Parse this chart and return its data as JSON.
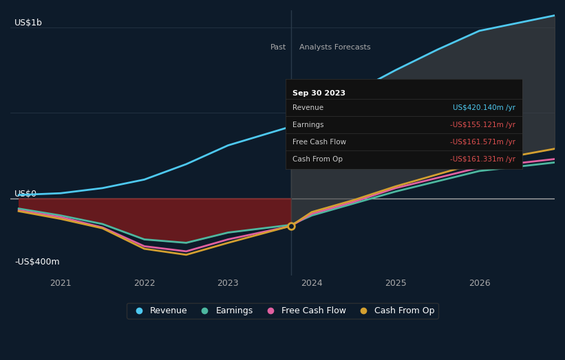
{
  "bg_color": "#0d1b2a",
  "plot_bg_color": "#0d1b2a",
  "title": "Sep 30 2023",
  "tooltip": {
    "date": "Sep 30 2023",
    "rows": [
      {
        "label": "Revenue",
        "value": "US$420.140m /yr",
        "color": "#4ec9f0"
      },
      {
        "label": "Earnings",
        "value": "-US$155.121m /yr",
        "color": "#e05050"
      },
      {
        "label": "Free Cash Flow",
        "value": "-US$161.571m /yr",
        "color": "#e05050"
      },
      {
        "label": "Cash From Op",
        "value": "-US$161.331m /yr",
        "color": "#e05050"
      }
    ]
  },
  "ylabel_top": "US$1b",
  "ylabel_mid": "US$0",
  "ylabel_bot": "-US$400m",
  "xlabel_past": "Past",
  "xlabel_forecast": "Analysts Forecasts",
  "divider_x": 2023.75,
  "ylim": [
    -450,
    1100
  ],
  "xlim": [
    2020.4,
    2026.9
  ],
  "xticks": [
    2021,
    2022,
    2023,
    2024,
    2025,
    2026
  ],
  "grid_color": "#2a3a4a",
  "zero_line_color": "#aaaaaa",
  "revenue_color": "#4ec9f0",
  "earnings_color": "#4db8a0",
  "cashflow_color": "#e060a0",
  "cashfromop_color": "#d4a030",
  "forecast_fill_color": "#555555",
  "past_fill_color": "#a02020",
  "revenue_past_x": [
    2020.5,
    2021.0,
    2021.5,
    2022.0,
    2022.5,
    2023.0,
    2023.75
  ],
  "revenue_past_y": [
    20,
    30,
    60,
    110,
    200,
    310,
    420
  ],
  "revenue_future_x": [
    2023.75,
    2024.0,
    2024.5,
    2025.0,
    2025.5,
    2026.0,
    2026.9
  ],
  "revenue_future_y": [
    420,
    500,
    620,
    750,
    870,
    980,
    1070
  ],
  "earnings_past_x": [
    2020.5,
    2021.0,
    2021.5,
    2022.0,
    2022.5,
    2023.0,
    2023.75
  ],
  "earnings_past_y": [
    -60,
    -100,
    -150,
    -240,
    -260,
    -200,
    -155
  ],
  "earnings_future_x": [
    2023.75,
    2024.0,
    2024.5,
    2025.0,
    2025.5,
    2026.0,
    2026.9
  ],
  "earnings_future_y": [
    -155,
    -100,
    -30,
    40,
    100,
    160,
    210
  ],
  "cashflow_past_x": [
    2020.5,
    2021.0,
    2021.5,
    2022.0,
    2022.5,
    2023.0,
    2023.75
  ],
  "cashflow_past_y": [
    -70,
    -110,
    -170,
    -280,
    -310,
    -240,
    -162
  ],
  "cashflow_future_x": [
    2023.75,
    2024.0,
    2024.5,
    2025.0,
    2025.5,
    2026.0,
    2026.9
  ],
  "cashflow_future_y": [
    -162,
    -90,
    -20,
    60,
    120,
    180,
    230
  ],
  "cashfromop_past_x": [
    2020.5,
    2021.0,
    2021.5,
    2022.0,
    2022.5,
    2023.0,
    2023.75
  ],
  "cashfromop_past_y": [
    -75,
    -120,
    -175,
    -295,
    -330,
    -260,
    -161
  ],
  "cashfromop_future_x": [
    2023.75,
    2024.0,
    2024.5,
    2025.0,
    2025.5,
    2026.0,
    2026.9
  ],
  "cashfromop_future_y": [
    -161,
    -80,
    -10,
    70,
    140,
    210,
    290
  ],
  "legend_items": [
    {
      "label": "Revenue",
      "color": "#4ec9f0",
      "marker": "o"
    },
    {
      "label": "Earnings",
      "color": "#4db8a0",
      "marker": "o"
    },
    {
      "label": "Free Cash Flow",
      "color": "#e060a0",
      "marker": "o"
    },
    {
      "label": "Cash From Op",
      "color": "#d4a030",
      "marker": "o"
    }
  ]
}
